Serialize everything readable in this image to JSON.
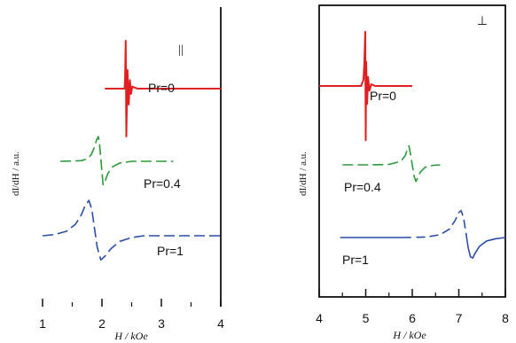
{
  "chart_data": [
    {
      "type": "line",
      "panel": "left",
      "title": "",
      "xlabel": "H / kOe",
      "ylabel": "dI/dH / a.u.",
      "orientation_label": "||",
      "xlim": [
        1,
        4
      ],
      "x_ticks": [
        1,
        2,
        3,
        4
      ],
      "legend": "none",
      "grid": false,
      "series": [
        {
          "name": "Pr=0",
          "color": "#e02020",
          "dash": "solid",
          "x": [
            2.05,
            2.38,
            2.39,
            2.4,
            2.41,
            2.43,
            2.45,
            2.47,
            2.49,
            2.51,
            2.55,
            2.6,
            3.0,
            3.55,
            4.0
          ],
          "y": [
            0.0,
            0.0,
            0.2,
            0.9,
            -0.9,
            0.35,
            -0.3,
            0.16,
            -0.1,
            0.04,
            0.02,
            0.0,
            0.0,
            0.0,
            0.0
          ]
        },
        {
          "name": "Pr=0.4",
          "color": "#2a9a3a",
          "dash": "dash",
          "x": [
            1.3,
            1.65,
            1.75,
            1.82,
            1.87,
            1.91,
            1.94,
            1.96,
            1.98,
            2.0,
            2.02,
            2.06,
            2.1,
            2.18,
            2.3,
            2.5,
            2.8,
            3.2
          ],
          "y": [
            0.0,
            0.02,
            0.08,
            0.22,
            0.45,
            0.72,
            0.82,
            0.55,
            0.1,
            -0.35,
            -0.78,
            -0.62,
            -0.4,
            -0.18,
            -0.06,
            0.0,
            0.0,
            0.0
          ]
        },
        {
          "name": "Pr=1",
          "color": "#2b4fa8",
          "dash": "dash",
          "x": [
            1.0,
            1.2,
            1.4,
            1.55,
            1.65,
            1.72,
            1.78,
            1.83,
            1.87,
            1.92,
            1.98,
            2.05,
            2.15,
            2.3,
            2.5,
            2.7,
            2.9,
            3.2,
            3.5,
            4.0
          ],
          "y": [
            0.0,
            0.03,
            0.12,
            0.3,
            0.55,
            0.82,
            0.95,
            0.7,
            0.25,
            -0.3,
            -0.65,
            -0.55,
            -0.35,
            -0.15,
            -0.05,
            0.0,
            0.0,
            0.0,
            0.0,
            0.0
          ]
        }
      ]
    },
    {
      "type": "line",
      "panel": "right",
      "title": "",
      "xlabel": "H / kOe",
      "ylabel": "dI/dH / a.u.",
      "orientation_label": "⊥",
      "xlim": [
        4,
        8
      ],
      "x_ticks": [
        4,
        5,
        6,
        7,
        8
      ],
      "legend": "none",
      "grid": false,
      "series": [
        {
          "name": "Pr=0",
          "color": "#e02020",
          "dash": "solid",
          "x": [
            4.0,
            4.9,
            4.95,
            4.97,
            4.99,
            5.0,
            5.01,
            5.03,
            5.05,
            5.08,
            5.12,
            5.2,
            5.6,
            6.0
          ],
          "y": [
            0.0,
            0.0,
            0.1,
            0.35,
            0.9,
            -0.9,
            0.4,
            -0.3,
            0.15,
            -0.08,
            0.03,
            0.0,
            0.0,
            0.0
          ]
        },
        {
          "name": "Pr=0.4",
          "color": "#2a9a3a",
          "dash": "dash",
          "x": [
            4.5,
            5.1,
            5.5,
            5.75,
            5.85,
            5.9,
            5.93,
            5.96,
            6.0,
            6.04,
            6.08,
            6.12,
            6.18,
            6.28,
            6.45,
            6.6
          ],
          "y": [
            0.0,
            0.0,
            0.02,
            0.15,
            0.4,
            0.72,
            0.82,
            0.5,
            0.0,
            -0.5,
            -0.72,
            -0.55,
            -0.3,
            -0.1,
            -0.02,
            0.0
          ]
        },
        {
          "name": "Pr=1",
          "color": "#2b4fa8",
          "dash": "solid-dash",
          "x": [
            4.45,
            5.0,
            5.8,
            6.3,
            6.6,
            6.8,
            6.92,
            7.0,
            7.05,
            7.1,
            7.15,
            7.2,
            7.25,
            7.3,
            7.35,
            7.45,
            7.6,
            7.8,
            8.0
          ],
          "y": [
            0.0,
            0.0,
            0.0,
            0.02,
            0.1,
            0.3,
            0.6,
            0.88,
            0.95,
            0.7,
            0.2,
            -0.35,
            -0.68,
            -0.72,
            -0.55,
            -0.3,
            -0.12,
            -0.04,
            0.0
          ]
        }
      ]
    }
  ]
}
